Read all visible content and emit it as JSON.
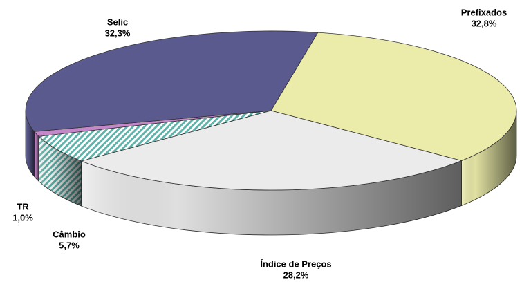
{
  "chart_data": {
    "type": "pie",
    "categories": [
      "Prefixados",
      "Índice de Preços",
      "Câmbio",
      "TR",
      "Selic"
    ],
    "values": [
      32.8,
      28.2,
      5.7,
      1.0,
      32.3
    ],
    "value_labels": [
      "32,8%",
      "28,2%",
      "5,7%",
      "1,0%",
      "32,3%"
    ],
    "colors": [
      "#ececaa",
      "#ebebeb",
      "#5fb3aa",
      "#c488c8",
      "#5a5a8e"
    ]
  }
}
